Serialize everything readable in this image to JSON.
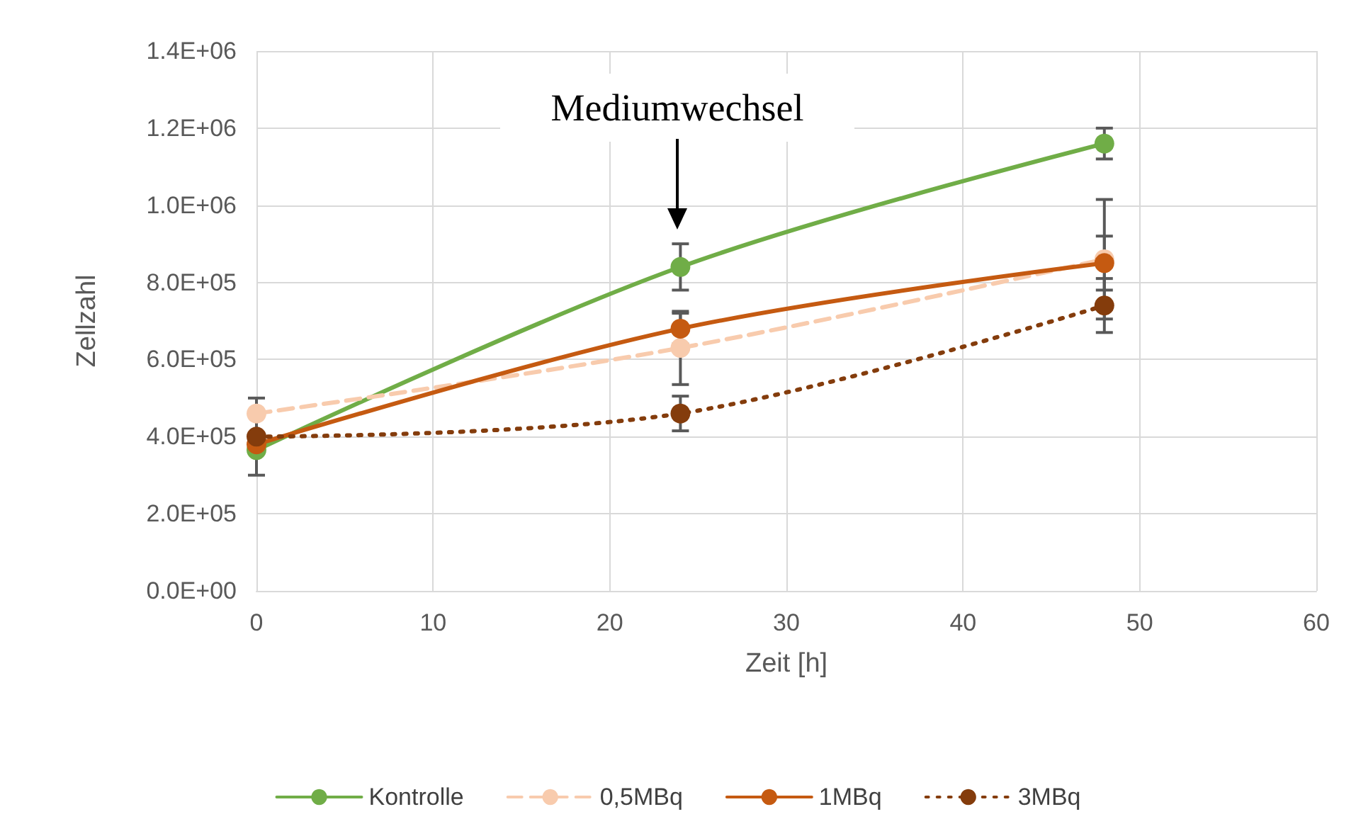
{
  "chart_data": {
    "type": "line",
    "xlabel": "Zeit [h]",
    "ylabel": "Zellzahl",
    "x": [
      0,
      24,
      48
    ],
    "series": [
      {
        "name": "Kontrolle",
        "color": "#70ad47",
        "line_style": "solid",
        "values": [
          365000,
          840000,
          1160000
        ],
        "errors": [
          null,
          60000,
          40000
        ]
      },
      {
        "name": "0,5MBq",
        "color": "#f8cbad",
        "line_style": "dashed",
        "values": [
          460000,
          630000,
          860000
        ],
        "errors": [
          null,
          95000,
          155000
        ]
      },
      {
        "name": "1MBq",
        "color": "#c55a11",
        "line_style": "solid",
        "values": [
          380000,
          680000,
          850000
        ],
        "errors": [
          null,
          40000,
          70000
        ]
      },
      {
        "name": "3MBq",
        "color": "#843c0c",
        "line_style": "dotted",
        "values": [
          400000,
          460000,
          740000
        ],
        "errors": [
          100000,
          45000,
          70000
        ]
      }
    ],
    "xlim": [
      0,
      60
    ],
    "xticks": [
      0,
      10,
      20,
      30,
      40,
      50,
      60
    ],
    "ylim": [
      0,
      1400000
    ],
    "yticks": [
      {
        "value": 0,
        "label": "0.0E+00"
      },
      {
        "value": 200000,
        "label": "2.0E+05"
      },
      {
        "value": 400000,
        "label": "4.0E+05"
      },
      {
        "value": 600000,
        "label": "6.0E+05"
      },
      {
        "value": 800000,
        "label": "8.0E+05"
      },
      {
        "value": 1000000,
        "label": "1.0E+06"
      },
      {
        "value": 1200000,
        "label": "1.2E+06"
      },
      {
        "value": 1400000,
        "label": "1.4E+06"
      }
    ],
    "annotations": [
      "Mediumwechsel"
    ],
    "grid": true,
    "legend": "bottom",
    "marker": "circle"
  }
}
